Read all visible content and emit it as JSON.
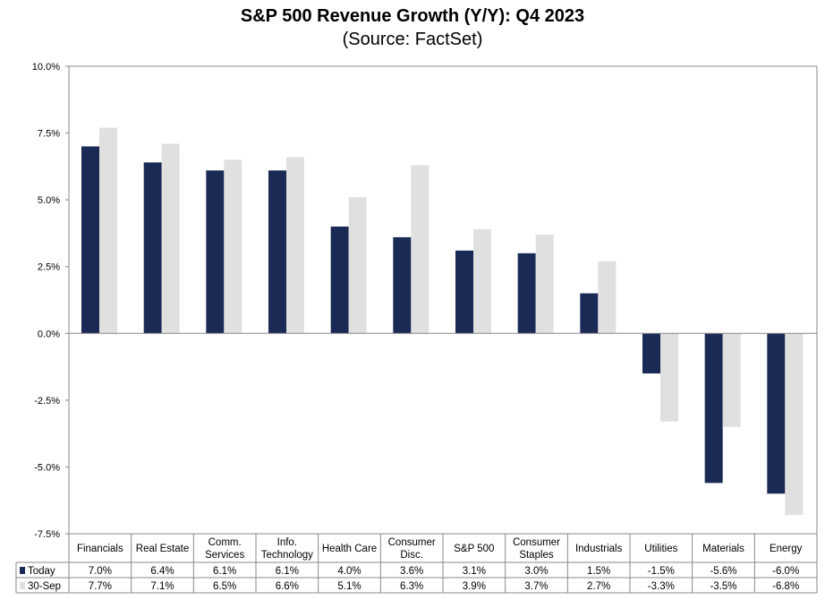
{
  "chart_data": {
    "type": "bar",
    "title": "S&P 500 Revenue Growth (Y/Y): Q4 2023",
    "subtitle": "(Source: FactSet)",
    "xlabel": "",
    "ylabel": "",
    "ylim": [
      -7.5,
      10.0
    ],
    "yticks": [
      "10.0%",
      "7.5%",
      "5.0%",
      "2.5%",
      "0.0%",
      "-2.5%",
      "-5.0%",
      "-7.5%"
    ],
    "ytick_values": [
      10,
      7.5,
      5,
      2.5,
      0,
      -2.5,
      -5,
      -7.5
    ],
    "categories": [
      [
        "Financials"
      ],
      [
        "Real Estate"
      ],
      [
        "Comm.",
        "Services"
      ],
      [
        "Info.",
        "Technology"
      ],
      [
        "Health Care"
      ],
      [
        "Consumer",
        "Disc."
      ],
      [
        "S&P 500"
      ],
      [
        "Consumer",
        "Staples"
      ],
      [
        "Industrials"
      ],
      [
        "Utilities"
      ],
      [
        "Materials"
      ],
      [
        "Energy"
      ]
    ],
    "series": [
      {
        "name": "Today",
        "color": "#1b2a55",
        "values": [
          7.0,
          6.4,
          6.1,
          6.1,
          4.0,
          3.6,
          3.1,
          3.0,
          1.5,
          -1.5,
          -5.6,
          -6.0
        ],
        "labels": [
          "7.0%",
          "6.4%",
          "6.1%",
          "6.1%",
          "4.0%",
          "3.6%",
          "3.1%",
          "3.0%",
          "1.5%",
          "-1.5%",
          "-5.6%",
          "-6.0%"
        ]
      },
      {
        "name": "30-Sep",
        "color": "#e0e0e0",
        "values": [
          7.7,
          7.1,
          6.5,
          6.6,
          5.1,
          6.3,
          3.9,
          3.7,
          2.7,
          -3.3,
          -3.5,
          -6.8
        ],
        "labels": [
          "7.7%",
          "7.1%",
          "6.5%",
          "6.6%",
          "5.1%",
          "6.3%",
          "3.9%",
          "3.7%",
          "2.7%",
          "-3.3%",
          "-3.5%",
          "-6.8%"
        ]
      }
    ],
    "grid": false,
    "legend": "data-table"
  }
}
